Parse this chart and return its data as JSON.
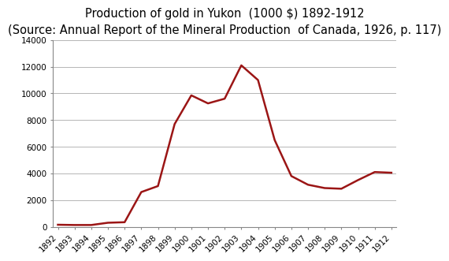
{
  "title": "Production of gold in Yukon  (1000 $) 1892-1912",
  "subtitle": "(Source: Annual Report of the Mineral Production  of Canada, 1926, p. 117)",
  "years": [
    1892,
    1893,
    1894,
    1895,
    1896,
    1897,
    1898,
    1899,
    1900,
    1901,
    1902,
    1903,
    1904,
    1905,
    1906,
    1907,
    1908,
    1909,
    1910,
    1911,
    1912
  ],
  "values": [
    150,
    130,
    130,
    300,
    340,
    2600,
    3050,
    7700,
    9850,
    9250,
    9600,
    12100,
    11000,
    6500,
    3800,
    3150,
    2900,
    2850,
    3500,
    4100,
    4050
  ],
  "line_color": "#9b1515",
  "line_width": 1.8,
  "ylim": [
    0,
    14000
  ],
  "yticks": [
    0,
    2000,
    4000,
    6000,
    8000,
    10000,
    12000,
    14000
  ],
  "grid_color": "#aaaaaa",
  "grid_linewidth": 0.6,
  "bg_color": "#ffffff",
  "title_fontsize": 10.5,
  "subtitle_fontsize": 8.5,
  "tick_fontsize": 7.5,
  "spine_color": "#888888"
}
